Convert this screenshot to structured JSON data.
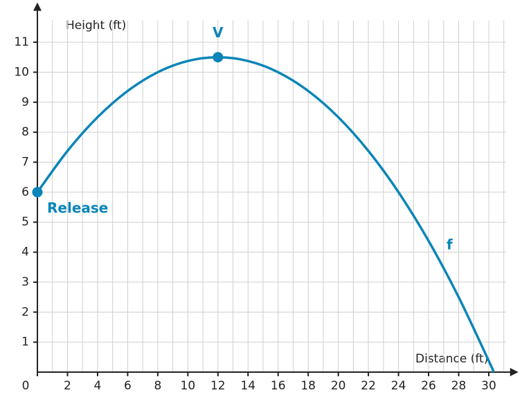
{
  "chart_data": {
    "type": "line",
    "xlabel": "Distance (ft)",
    "ylabel": "Height (ft)",
    "x": [
      0,
      2,
      4,
      6,
      8,
      10,
      12,
      14,
      16,
      18,
      20,
      22,
      24,
      26,
      28,
      30,
      30.33
    ],
    "series": [
      {
        "name": "f",
        "color": "#0a85b8",
        "values": [
          6,
          7.375,
          8.5,
          9.375,
          10,
          10.375,
          10.5,
          10.375,
          10,
          9.375,
          8.5,
          7.375,
          6,
          4.375,
          2.5,
          0.375,
          0
        ]
      }
    ],
    "points": [
      {
        "label": "Release",
        "x": 0,
        "y": 6
      },
      {
        "label": "V",
        "x": 12,
        "y": 10.5
      }
    ],
    "xlim": [
      0,
      31.6
    ],
    "ylim": [
      0,
      12
    ],
    "xticks": [
      0,
      2,
      4,
      6,
      8,
      10,
      12,
      14,
      16,
      18,
      20,
      22,
      24,
      26,
      28,
      30
    ],
    "xgrid": [
      1,
      3,
      5,
      7,
      9,
      11,
      13,
      15,
      17,
      19,
      21,
      23,
      25,
      27,
      29,
      31
    ],
    "yticks": [
      1,
      2,
      3,
      4,
      5,
      6,
      7,
      8,
      9,
      10,
      11
    ],
    "grid": true
  }
}
